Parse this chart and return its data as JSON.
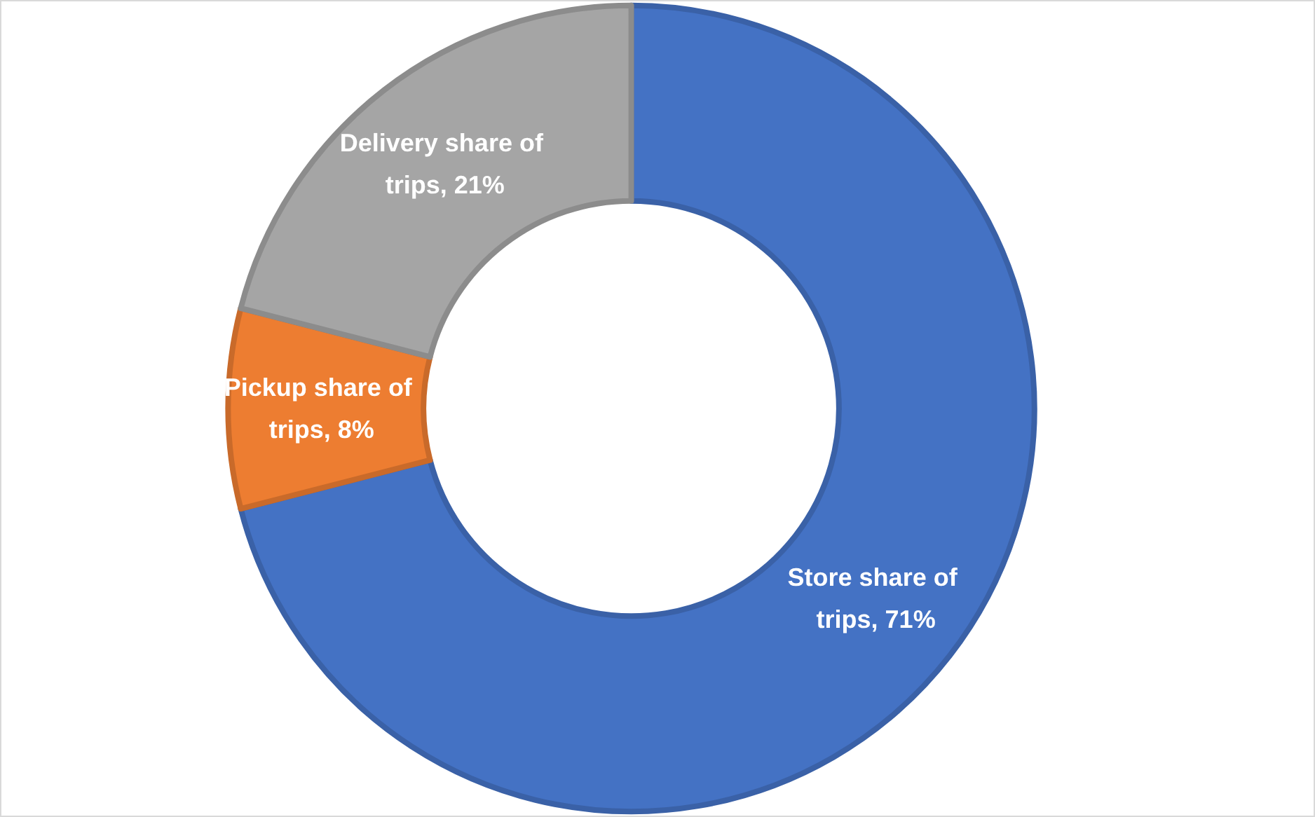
{
  "chart_data": {
    "type": "donut",
    "categories": [
      "Store share of trips",
      "Pickup share of trips",
      "Delivery share of trips"
    ],
    "values": [
      71,
      8,
      21
    ],
    "value_labels": [
      "71%",
      "8%",
      "21%"
    ],
    "colors": [
      "#4472c4",
      "#ed7d31",
      "#a5a5a5"
    ],
    "legend": false
  }
}
